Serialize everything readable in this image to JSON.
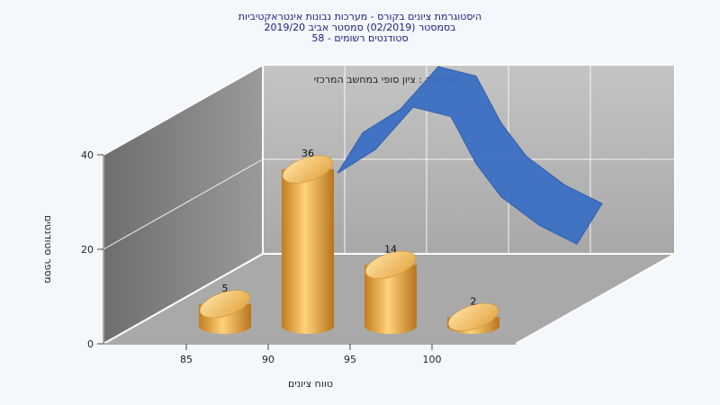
{
  "title_lines": [
    "היסטוגרמת ציונים בקורס - מערכות נבונות אינטראקטיביות",
    "בסמסטר (02/2019) סמסטר אביב 2019/20",
    "סטודנטים רשומים - 58"
  ],
  "chart_data": {
    "type": "bar",
    "subtitle": "במשימה : ציון סופי במחשב המרכזי",
    "xlabel": "טווח ציונים",
    "ylabel": "מספר סטודנטים",
    "categories": [
      "85",
      "90",
      "95",
      "100"
    ],
    "values": [
      5,
      36,
      14,
      2
    ],
    "ylim": [
      0,
      40
    ],
    "yticks": [
      0,
      20,
      40
    ],
    "grid": true,
    "curve": {
      "type": "area",
      "color": "#3b6fc4",
      "x": [
        93.5,
        95,
        96.5,
        98,
        99,
        100,
        101.5,
        103
      ],
      "y": [
        38,
        43,
        52,
        50,
        40,
        33,
        27,
        23
      ]
    },
    "colors": {
      "bar_light": "#ffd27a",
      "bar_mid": "#f0a830",
      "bar_dark": "#b8741c",
      "back_wall": "#b2b2b2",
      "side_wall": "#808080",
      "floor": "#a6a6a6",
      "title": "#1a237e"
    }
  }
}
